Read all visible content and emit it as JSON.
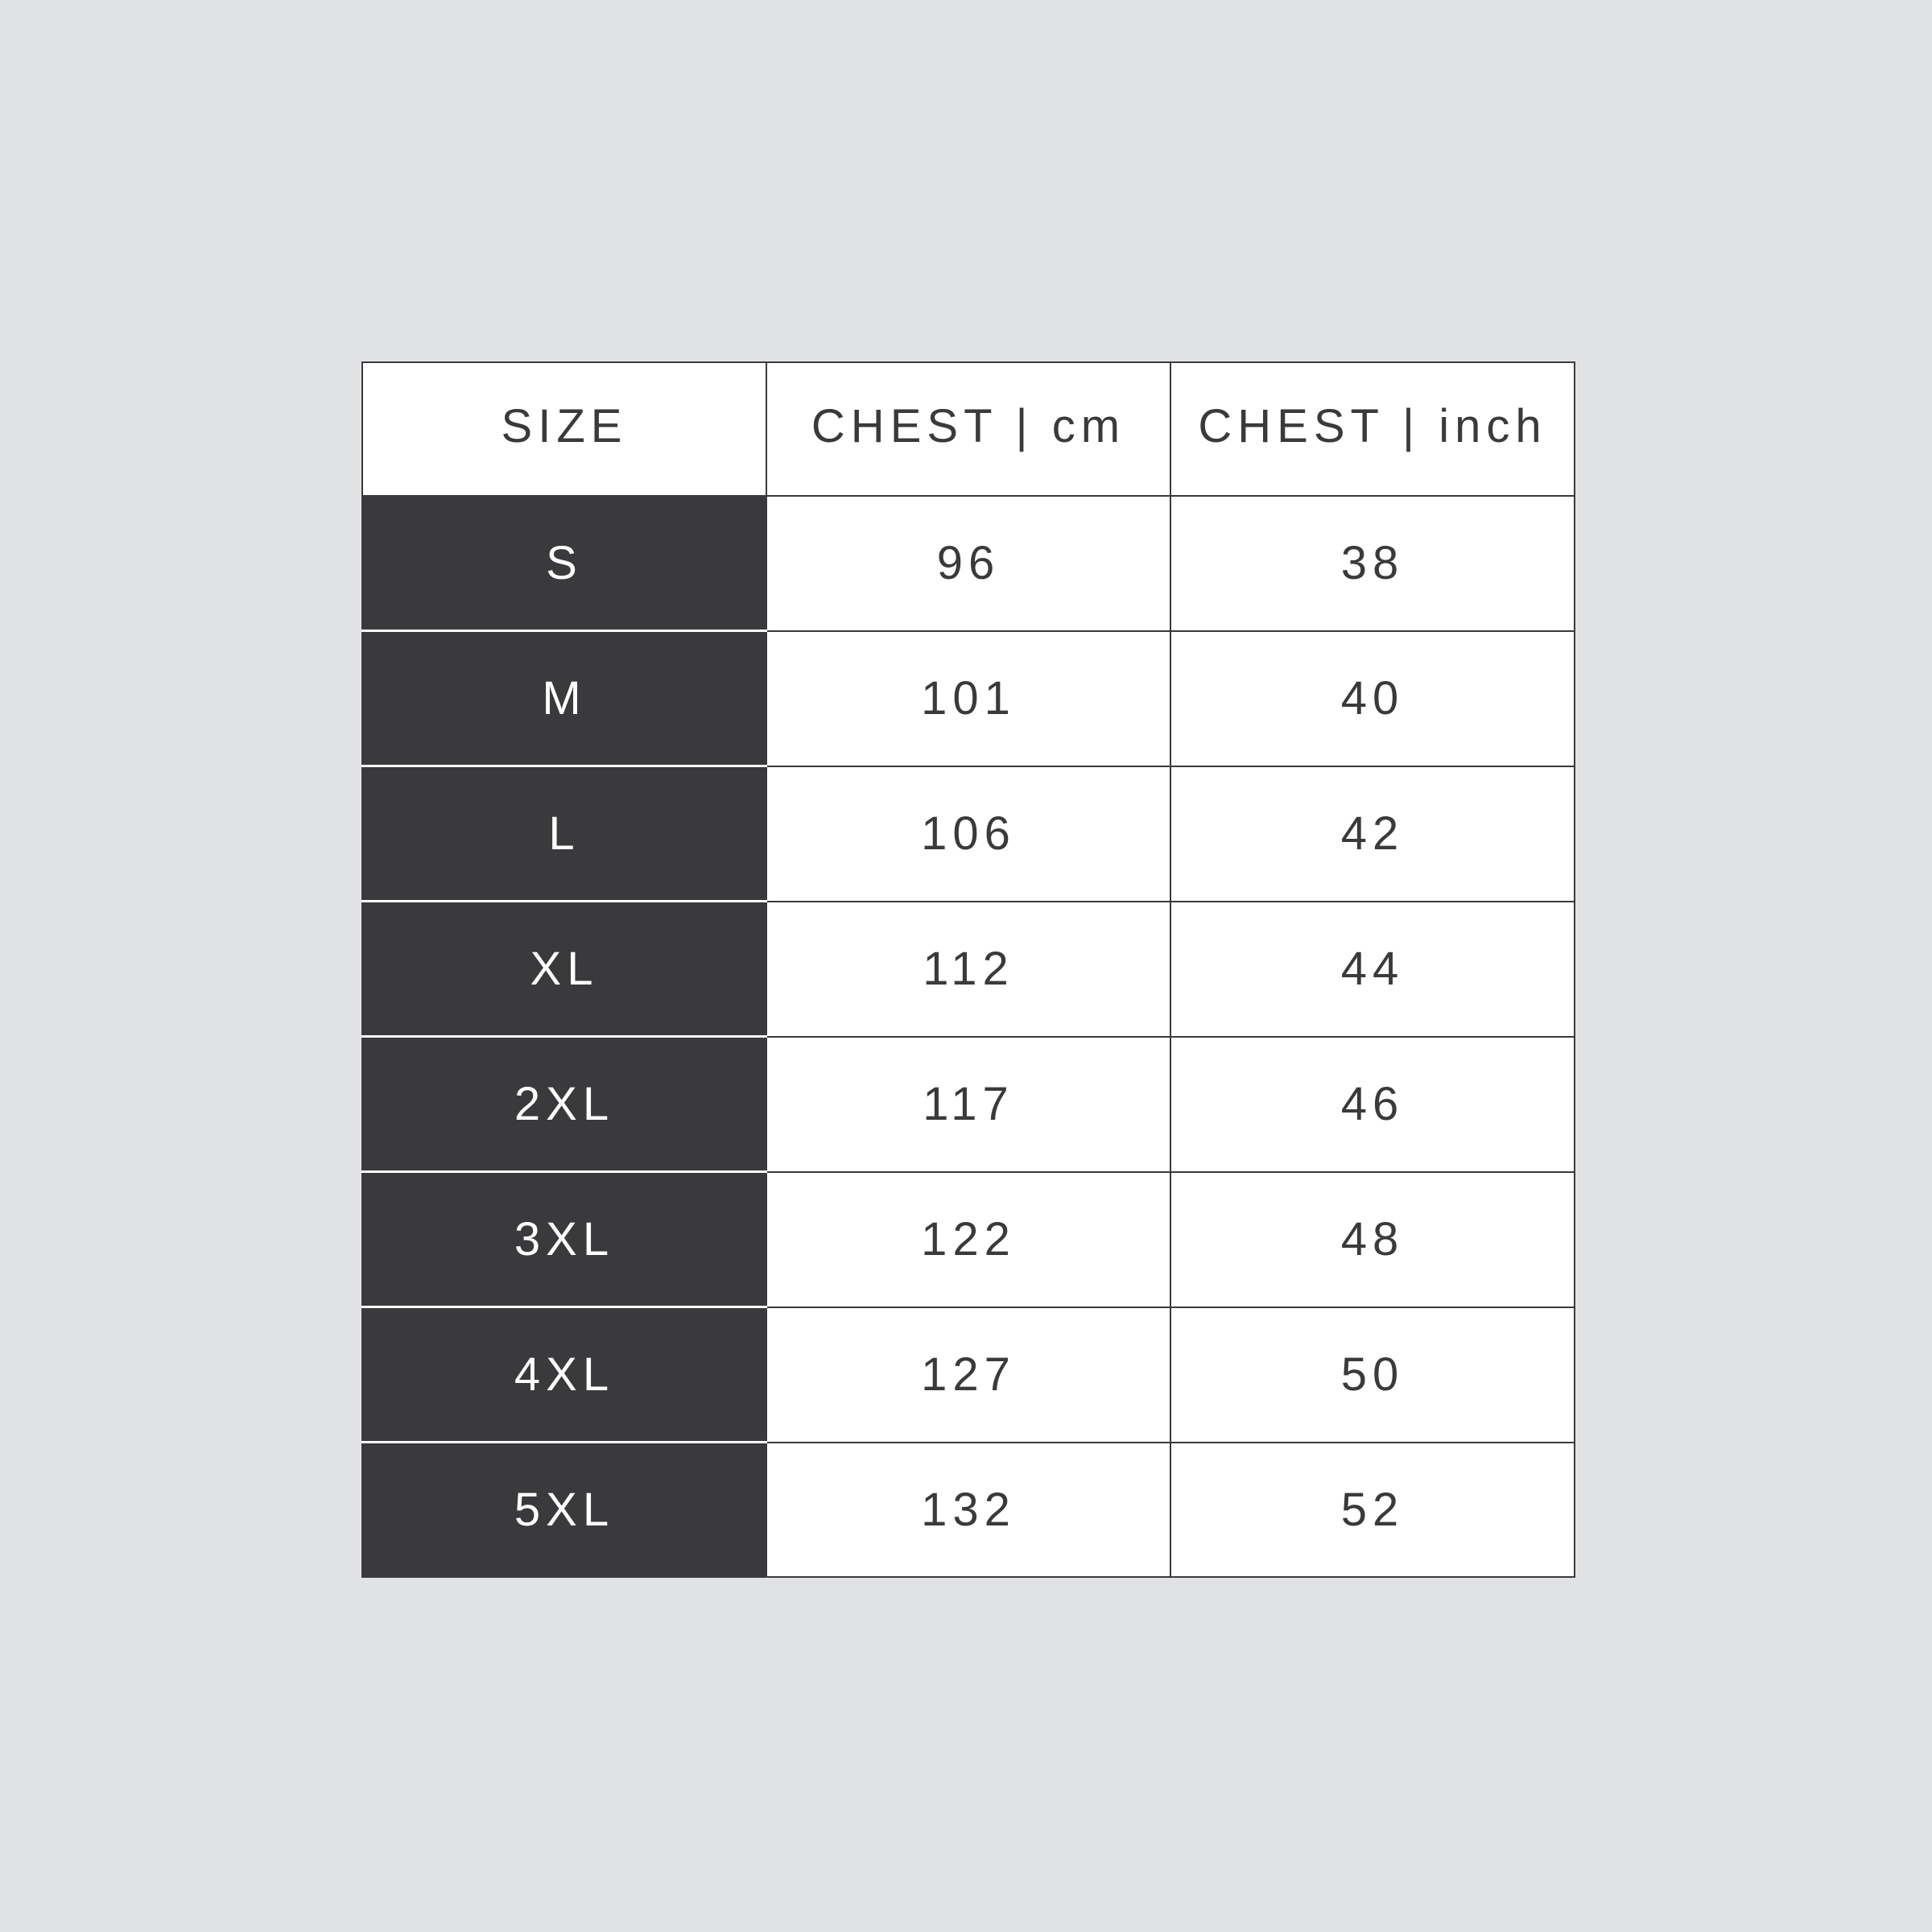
{
  "colors": {
    "background": "#e1e2e4",
    "dark_cell": "#3a3a3c",
    "text": "#3a3a3c"
  },
  "headers": [
    "SIZE",
    "CHEST | cm",
    "CHEST | inch"
  ],
  "rows": [
    {
      "size": "S",
      "cm": "96",
      "inch": "38"
    },
    {
      "size": "M",
      "cm": "101",
      "inch": "40"
    },
    {
      "size": "L",
      "cm": "106",
      "inch": "42"
    },
    {
      "size": "XL",
      "cm": "112",
      "inch": "44"
    },
    {
      "size": "2XL",
      "cm": "117",
      "inch": "46"
    },
    {
      "size": "3XL",
      "cm": "122",
      "inch": "48"
    },
    {
      "size": "4XL",
      "cm": "127",
      "inch": "50"
    },
    {
      "size": "5XL",
      "cm": "132",
      "inch": "52"
    }
  ]
}
